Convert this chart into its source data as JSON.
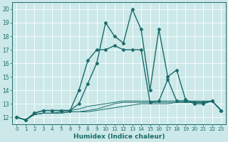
{
  "xlabel": "Humidex (Indice chaleur)",
  "background_color": "#cce8e8",
  "grid_color": "#b8d8d8",
  "line_color": "#1a6b6b",
  "xlim": [
    -0.5,
    23.5
  ],
  "ylim": [
    11.5,
    20.5
  ],
  "yticks": [
    12,
    13,
    14,
    15,
    16,
    17,
    18,
    19,
    20
  ],
  "xticks": [
    0,
    1,
    2,
    3,
    4,
    5,
    6,
    7,
    8,
    9,
    10,
    11,
    12,
    13,
    14,
    15,
    16,
    17,
    18,
    19,
    20,
    21,
    22,
    23
  ],
  "series": [
    {
      "x": [
        0,
        1,
        2,
        3,
        4,
        5,
        6,
        7,
        8,
        9,
        10,
        11,
        12,
        13,
        14,
        15,
        16,
        17,
        18,
        19,
        20,
        21,
        22,
        23
      ],
      "y": [
        12.0,
        11.8,
        12.3,
        12.5,
        12.5,
        12.5,
        12.5,
        13.0,
        14.5,
        16.0,
        19.0,
        18.0,
        17.5,
        20.0,
        18.5,
        14.0,
        18.5,
        15.0,
        15.5,
        13.3,
        13.0,
        13.0,
        13.2,
        12.5
      ],
      "marker": "D",
      "markersize": 2.5,
      "linewidth": 1.0
    },
    {
      "x": [
        0,
        1,
        2,
        3,
        4,
        5,
        6,
        7,
        8,
        9,
        10,
        11,
        12,
        13,
        14,
        15,
        16,
        17,
        18,
        19,
        20,
        21,
        22,
        23
      ],
      "y": [
        12.0,
        11.8,
        12.3,
        12.5,
        12.5,
        12.5,
        12.5,
        14.0,
        16.2,
        17.0,
        17.0,
        17.3,
        17.0,
        17.0,
        17.0,
        13.1,
        13.2,
        14.8,
        13.2,
        13.2,
        13.1,
        13.1,
        13.2,
        12.5
      ],
      "marker": "D",
      "markersize": 2.5,
      "linewidth": 1.0
    },
    {
      "x": [
        0,
        1,
        2,
        3,
        4,
        5,
        6,
        7,
        8,
        9,
        10,
        11,
        12,
        13,
        14,
        15,
        16,
        17,
        18,
        19,
        20,
        21,
        22,
        23
      ],
      "y": [
        12.0,
        11.8,
        12.2,
        12.3,
        12.3,
        12.3,
        12.4,
        12.4,
        12.4,
        12.5,
        12.6,
        12.7,
        12.8,
        12.9,
        13.0,
        13.0,
        13.0,
        13.0,
        13.1,
        13.1,
        13.1,
        13.1,
        13.2,
        12.5
      ],
      "marker": null,
      "markersize": 0,
      "linewidth": 0.7
    },
    {
      "x": [
        0,
        1,
        2,
        3,
        4,
        5,
        6,
        7,
        8,
        9,
        10,
        11,
        12,
        13,
        14,
        15,
        16,
        17,
        18,
        19,
        20,
        21,
        22,
        23
      ],
      "y": [
        12.0,
        11.8,
        12.2,
        12.3,
        12.3,
        12.3,
        12.4,
        12.4,
        12.5,
        12.6,
        12.8,
        13.0,
        13.1,
        13.1,
        13.1,
        13.1,
        13.1,
        13.1,
        13.1,
        13.1,
        13.1,
        13.1,
        13.2,
        12.5
      ],
      "marker": null,
      "markersize": 0,
      "linewidth": 0.7
    },
    {
      "x": [
        0,
        1,
        2,
        3,
        4,
        5,
        6,
        7,
        8,
        9,
        10,
        11,
        12,
        13,
        14,
        15,
        16,
        17,
        18,
        19,
        20,
        21,
        22,
        23
      ],
      "y": [
        12.0,
        11.8,
        12.2,
        12.3,
        12.3,
        12.4,
        12.5,
        12.6,
        12.8,
        12.9,
        13.0,
        13.1,
        13.2,
        13.2,
        13.2,
        13.2,
        13.2,
        13.2,
        13.2,
        13.2,
        13.2,
        13.2,
        13.2,
        12.5
      ],
      "marker": null,
      "markersize": 0,
      "linewidth": 0.7
    }
  ],
  "figsize": [
    3.2,
    2.0
  ],
  "dpi": 100
}
